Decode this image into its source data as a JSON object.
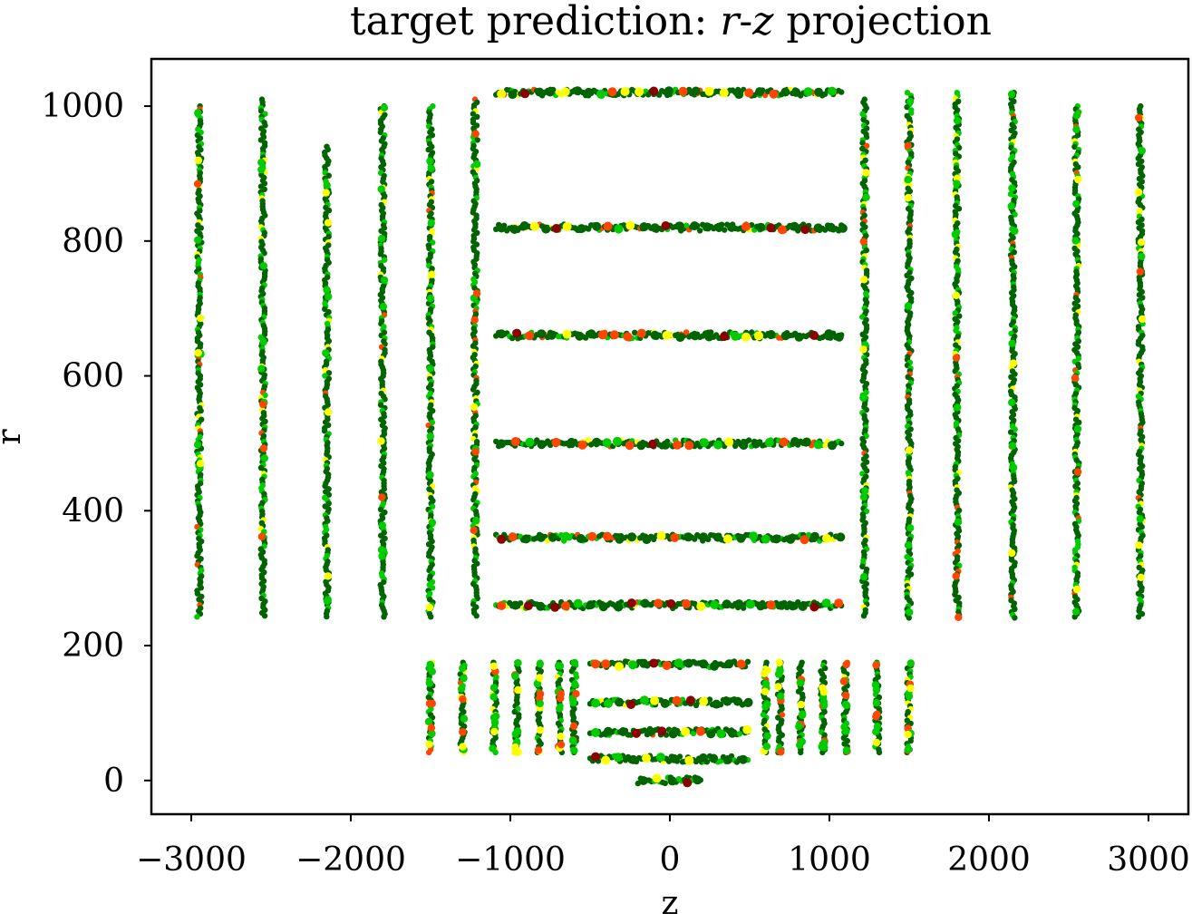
{
  "chart_data": {
    "type": "scatter",
    "title": "target prediction: r-z projection",
    "title_parts": {
      "pre": "target prediction: ",
      "r": "r",
      "dash": "-",
      "z": "z",
      "post": " projection"
    },
    "xlabel": "z",
    "ylabel": "r",
    "xlim": [
      -3250,
      3250
    ],
    "ylim": [
      -50,
      1070
    ],
    "xticks": [
      -3000,
      -2000,
      -1000,
      0,
      1000,
      2000,
      3000
    ],
    "xtick_labels": [
      "−3000",
      "−2000",
      "−1000",
      "0",
      "1000",
      "2000",
      "3000"
    ],
    "yticks": [
      0,
      200,
      400,
      600,
      800,
      1000
    ],
    "ytick_labels": [
      "0",
      "200",
      "400",
      "600",
      "800",
      "1000"
    ],
    "grid": false,
    "colors": {
      "dark_green": "#006400",
      "green": "#00cc00",
      "yellow": "#ffff00",
      "red_orange": "#ff4500",
      "dark_red": "#8b0000"
    },
    "barrel_layers": [
      {
        "r": 32,
        "z_range": [
          -500,
          500
        ]
      },
      {
        "r": 72,
        "z_range": [
          -500,
          500
        ]
      },
      {
        "r": 116,
        "z_range": [
          -500,
          500
        ]
      },
      {
        "r": 172,
        "z_range": [
          -500,
          500
        ]
      },
      {
        "r": 260,
        "z_range": [
          -1090,
          1090
        ]
      },
      {
        "r": 360,
        "z_range": [
          -1090,
          1090
        ]
      },
      {
        "r": 500,
        "z_range": [
          -1090,
          1090
        ]
      },
      {
        "r": 660,
        "z_range": [
          -1090,
          1090
        ]
      },
      {
        "r": 820,
        "z_range": [
          -1090,
          1090
        ]
      },
      {
        "r": 1020,
        "z_range": [
          -1090,
          1090
        ]
      },
      {
        "r": 0,
        "z_range": [
          -200,
          200
        ]
      }
    ],
    "endcap_disks": [
      {
        "z": -2950,
        "r_range": [
          240,
          1000
        ]
      },
      {
        "z": -2550,
        "r_range": [
          240,
          1010
        ]
      },
      {
        "z": -2150,
        "r_range": [
          240,
          940
        ]
      },
      {
        "z": -1800,
        "r_range": [
          240,
          1000
        ]
      },
      {
        "z": -1500,
        "r_range": [
          240,
          1000
        ]
      },
      {
        "z": -1220,
        "r_range": [
          240,
          1010
        ]
      },
      {
        "z": 1220,
        "r_range": [
          240,
          1010
        ]
      },
      {
        "z": 1500,
        "r_range": [
          240,
          1020
        ]
      },
      {
        "z": 1800,
        "r_range": [
          240,
          1020
        ]
      },
      {
        "z": 2150,
        "r_range": [
          240,
          1020
        ]
      },
      {
        "z": 2550,
        "r_range": [
          240,
          1000
        ]
      },
      {
        "z": 2950,
        "r_range": [
          240,
          1000
        ]
      },
      {
        "z": -1500,
        "r_range": [
          40,
          175
        ]
      },
      {
        "z": -1300,
        "r_range": [
          40,
          175
        ]
      },
      {
        "z": -1100,
        "r_range": [
          40,
          175
        ]
      },
      {
        "z": -960,
        "r_range": [
          40,
          175
        ]
      },
      {
        "z": -820,
        "r_range": [
          40,
          175
        ]
      },
      {
        "z": -690,
        "r_range": [
          40,
          175
        ]
      },
      {
        "z": -600,
        "r_range": [
          40,
          175
        ]
      },
      {
        "z": 600,
        "r_range": [
          40,
          175
        ]
      },
      {
        "z": 690,
        "r_range": [
          40,
          175
        ]
      },
      {
        "z": 820,
        "r_range": [
          40,
          175
        ]
      },
      {
        "z": 960,
        "r_range": [
          40,
          175
        ]
      },
      {
        "z": 1100,
        "r_range": [
          40,
          175
        ]
      },
      {
        "z": 1300,
        "r_range": [
          40,
          175
        ]
      },
      {
        "z": 1500,
        "r_range": [
          40,
          175
        ]
      }
    ]
  }
}
